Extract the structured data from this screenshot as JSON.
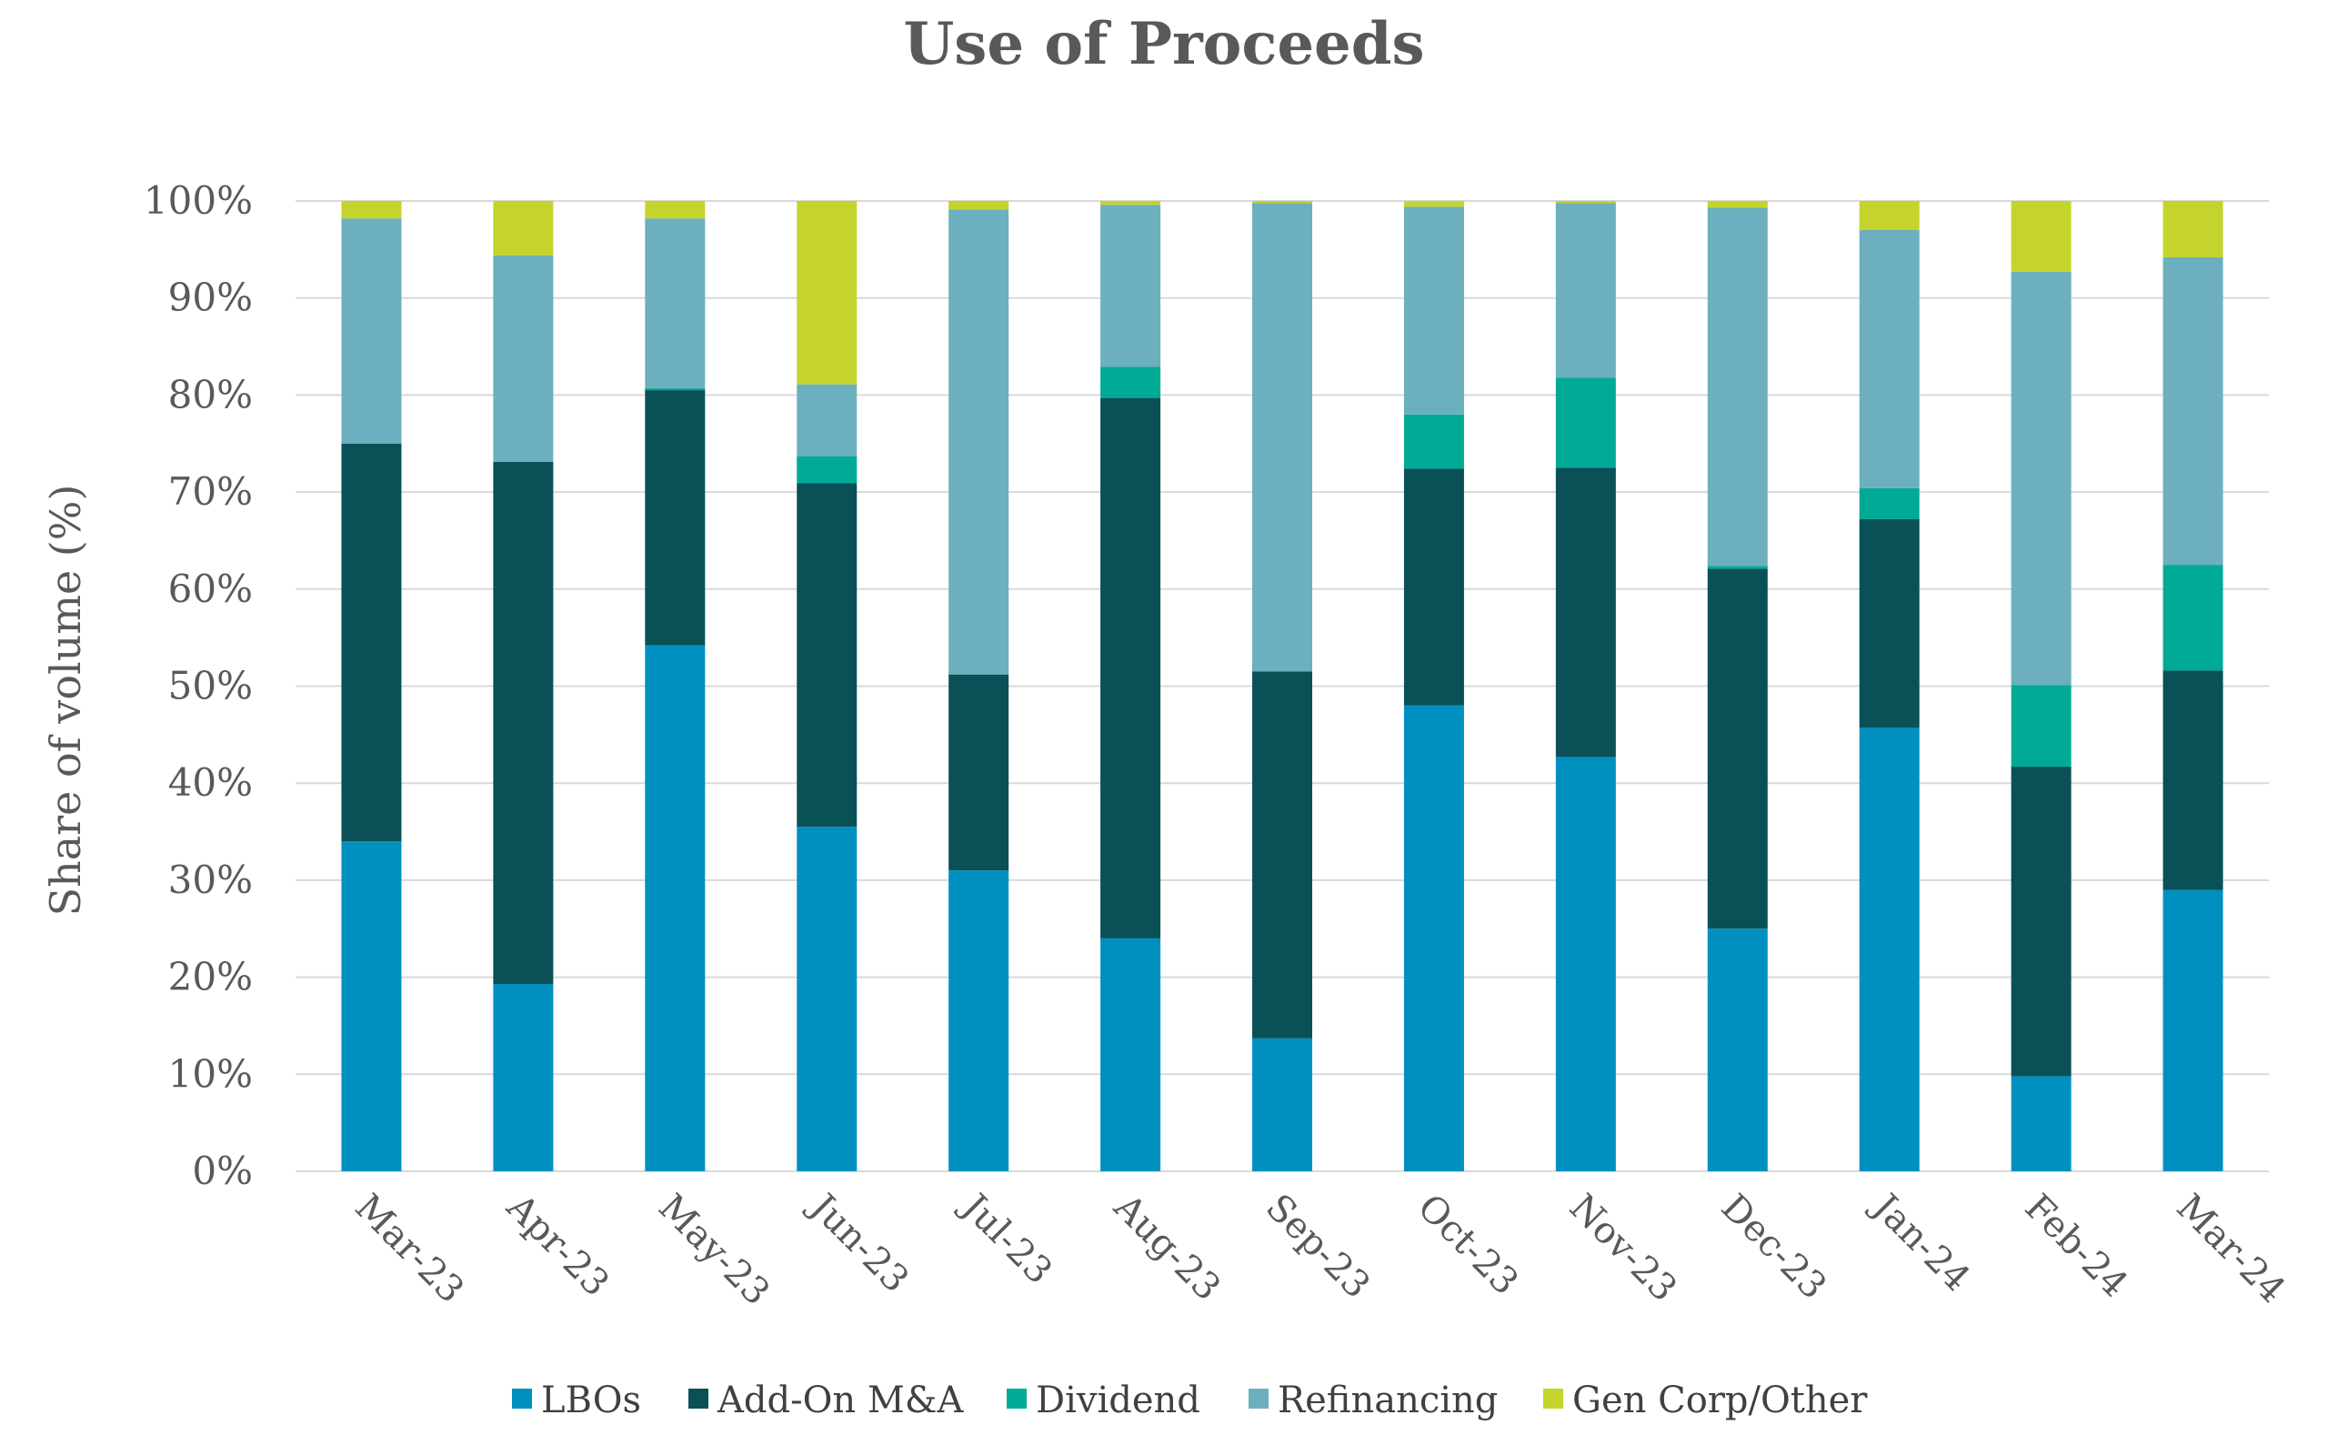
{
  "chart_data": {
    "type": "bar",
    "stacked": true,
    "title": "Use of Proceeds",
    "ylabel": "Share of volume (%)",
    "xlabel": "",
    "ylim": [
      0,
      100
    ],
    "yticks": [
      "0%",
      "10%",
      "20%",
      "30%",
      "40%",
      "50%",
      "60%",
      "70%",
      "80%",
      "90%",
      "100%"
    ],
    "grid": true,
    "legend_position": "bottom",
    "categories": [
      "Mar-23",
      "Apr-23",
      "May-23",
      "Jun-23",
      "Jul-23",
      "Aug-23",
      "Sep-23",
      "Oct-23",
      "Nov-23",
      "Dec-23",
      "Jan-24",
      "Feb-24",
      "Mar-24"
    ],
    "series": [
      {
        "name": "LBOs",
        "color": "#0090c0",
        "values": [
          34.0,
          19.3,
          54.2,
          35.5,
          31.0,
          24.0,
          13.7,
          48.0,
          42.7,
          25.0,
          45.7,
          9.8,
          29.0
        ]
      },
      {
        "name": "Add-On M&A",
        "color": "#0a5057",
        "values": [
          41.0,
          53.8,
          26.3,
          35.4,
          20.2,
          55.7,
          37.8,
          24.4,
          29.8,
          37.1,
          21.5,
          31.9,
          22.6
        ]
      },
      {
        "name": "Dividend",
        "color": "#00aa96",
        "values": [
          0.0,
          0.0,
          0.2,
          2.8,
          0.0,
          3.2,
          0.0,
          5.6,
          9.3,
          0.3,
          3.2,
          8.4,
          10.9
        ]
      },
      {
        "name": "Refinancing",
        "color": "#6cafbe",
        "values": [
          23.2,
          21.3,
          17.5,
          7.4,
          47.9,
          16.7,
          48.3,
          21.4,
          18.0,
          36.9,
          26.6,
          42.6,
          31.7
        ]
      },
      {
        "name": "Gen Corp/Other",
        "color": "#c4d42c",
        "values": [
          1.8,
          5.6,
          1.8,
          18.9,
          0.9,
          0.4,
          0.2,
          0.6,
          0.2,
          0.7,
          3.0,
          7.3,
          5.8
        ]
      }
    ]
  }
}
